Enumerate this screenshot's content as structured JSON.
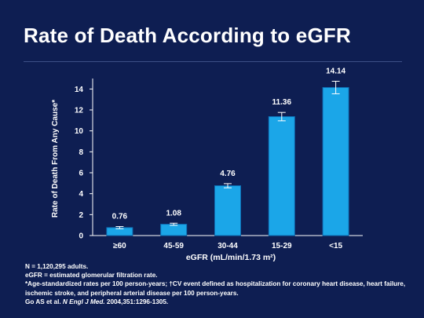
{
  "title": "Rate of Death According to eGFR",
  "chart_data": {
    "type": "bar",
    "categories": [
      "≥60",
      "45-59",
      "30-44",
      "15-29",
      "<15"
    ],
    "values": [
      0.76,
      1.08,
      4.76,
      11.36,
      14.14
    ],
    "error_bars": [
      {
        "low": 0.66,
        "high": 0.86
      },
      {
        "low": 0.98,
        "high": 1.18
      },
      {
        "low": 4.56,
        "high": 4.96
      },
      {
        "low": 10.96,
        "high": 11.76
      },
      {
        "low": 13.54,
        "high": 14.74
      }
    ],
    "data_labels": [
      "0.76",
      "1.08",
      "4.76",
      "11.36",
      "14.14"
    ],
    "xlabel": "eGFR (mL/min/1.73 m²)",
    "ylabel": "Rate of Death From Any Cause*",
    "ylim": [
      0,
      15
    ],
    "yticks": [
      0,
      2,
      4,
      6,
      8,
      10,
      12,
      14
    ],
    "grid": false,
    "bar_color": "#1ba6e8",
    "bar_edge_color": "#0f6fb5"
  },
  "footer": {
    "line1": "N = 1,120,295 adults.",
    "line2": "eGFR = estimated glomerular filtration rate.",
    "line3": "*Age-standardized rates per 100 person-years; †CV event defined as hospitalization for coronary heart disease, heart failure, ischemic stroke, and peripheral arterial disease per 100 person-years.",
    "cite_prefix": "Go AS et al. ",
    "cite_journal": "N Engl J Med.",
    "cite_suffix": " 2004,351:1296-1305."
  }
}
